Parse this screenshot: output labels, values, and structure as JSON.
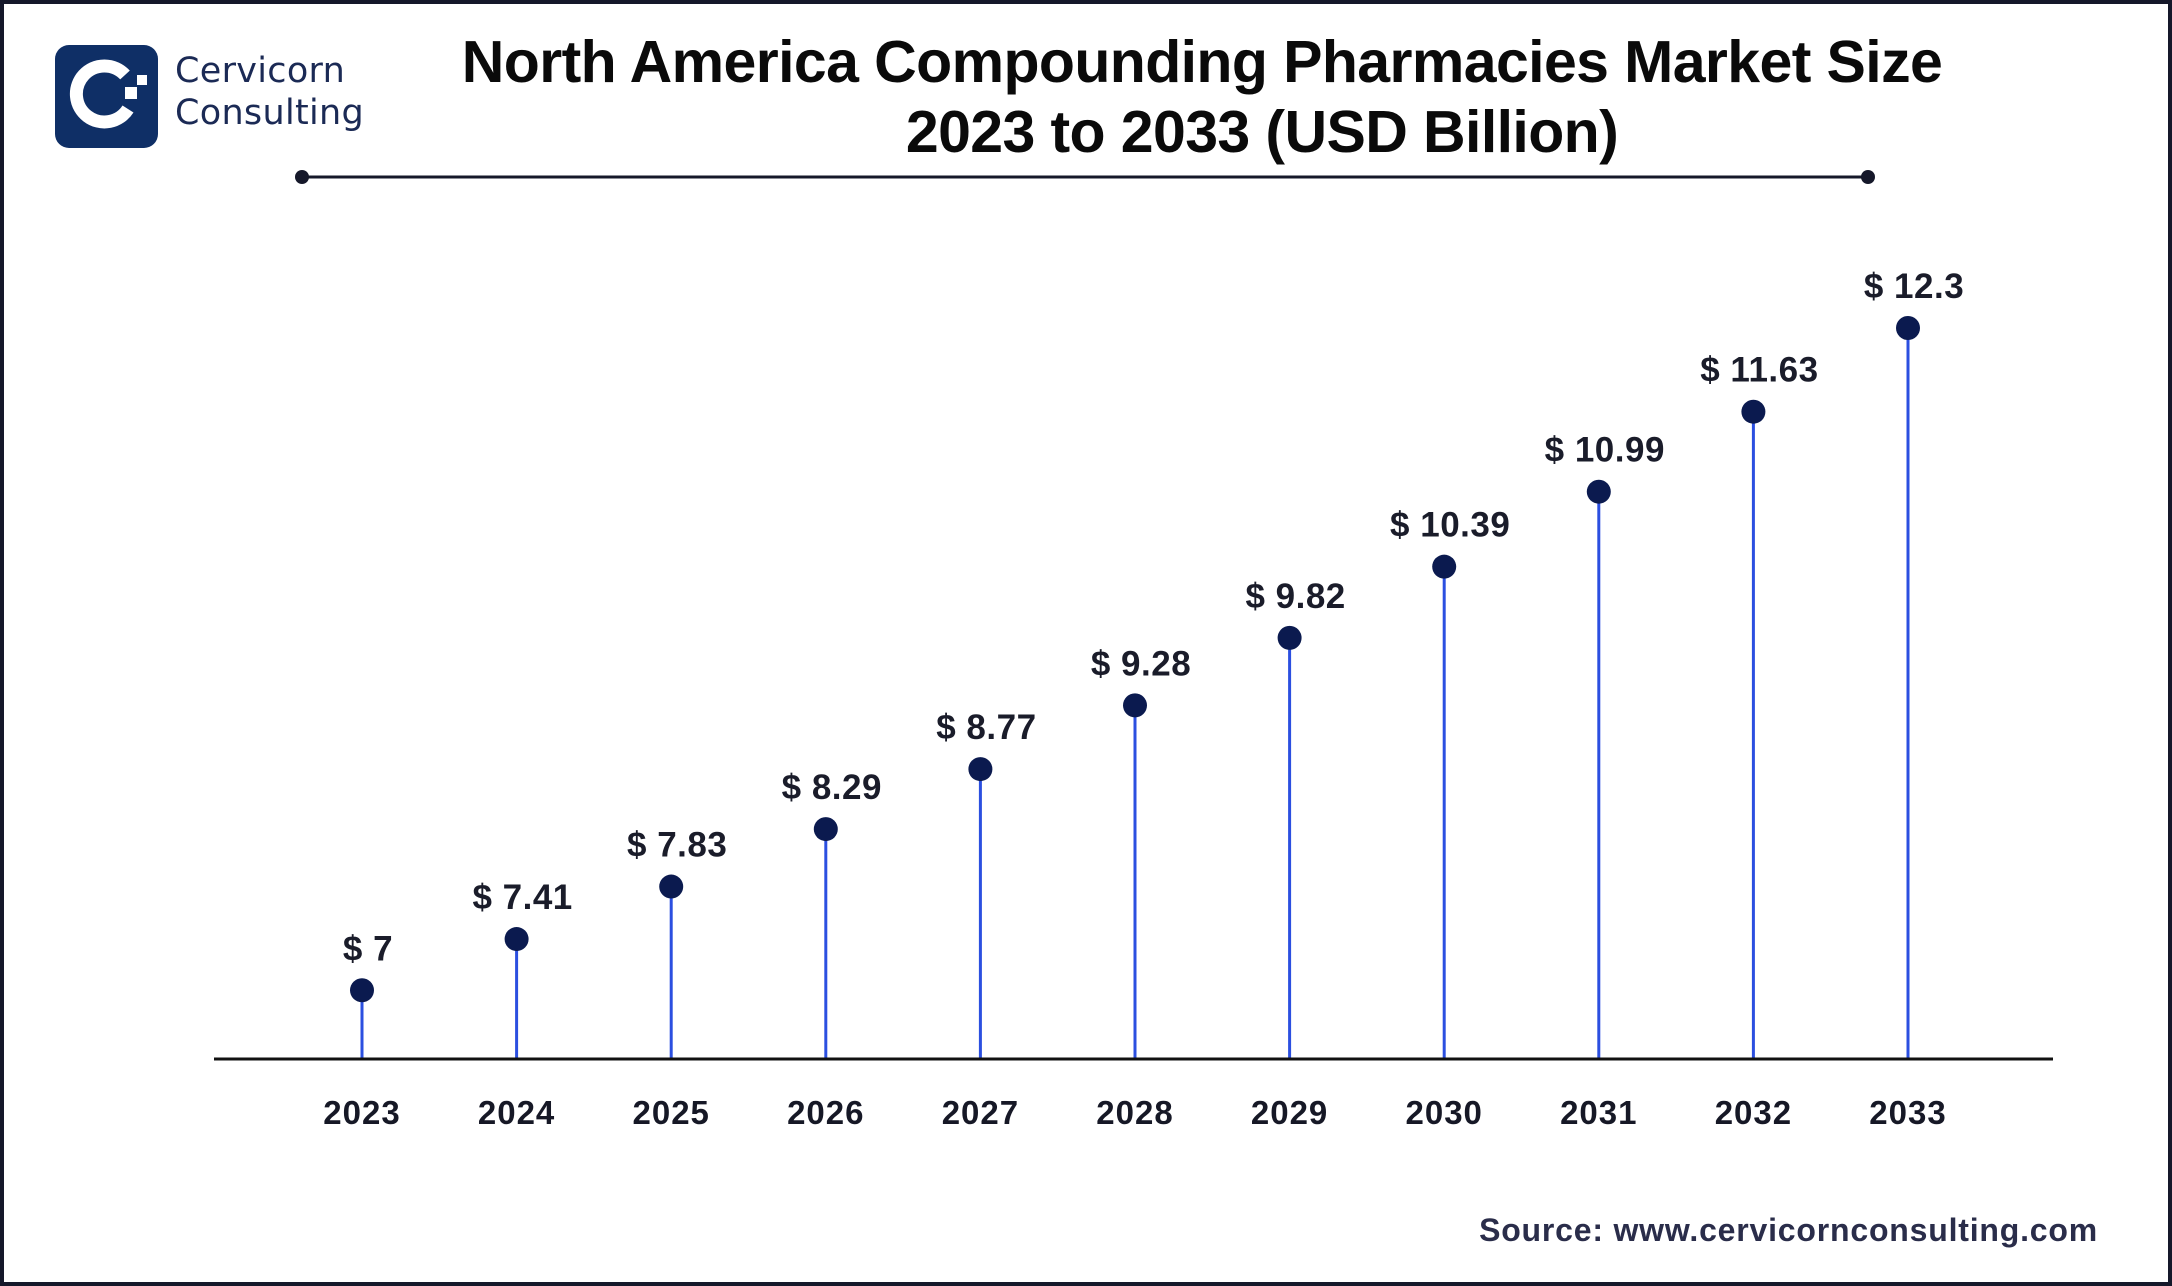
{
  "brand": {
    "name_line1": "Cervicorn",
    "name_line2": "Consulting",
    "logo_icon": "cervicorn-c-logo-icon",
    "logo_color": "#0f2f66"
  },
  "title": {
    "line1": "North America Compounding Pharmacies Market Size",
    "line2": "2023 to 2033 (USD Billion)"
  },
  "source": "Source: www.cervicornconsulting.com",
  "colors": {
    "stem": "#2b4fe0",
    "dot": "#0b1a4f",
    "axis": "#111111",
    "label": "#1a1c2a"
  },
  "chart_data": {
    "type": "lollipop",
    "title": "North America Compounding Pharmacies Market Size 2023 to 2033 (USD Billion)",
    "xlabel": "",
    "ylabel": "",
    "categories": [
      "2023",
      "2024",
      "2025",
      "2026",
      "2027",
      "2028",
      "2029",
      "2030",
      "2031",
      "2032",
      "2033"
    ],
    "values": [
      7,
      7.41,
      7.83,
      8.29,
      8.77,
      9.28,
      9.82,
      10.39,
      10.99,
      11.63,
      12.3
    ],
    "value_labels": [
      "$ 7",
      "$ 7.41",
      "$ 7.83",
      "$ 8.29",
      "$ 8.77",
      "$ 9.28",
      "$ 9.82",
      "$ 10.39",
      "$ 10.99",
      "$ 11.63",
      "$ 12.3"
    ],
    "unit": "USD Billion",
    "ylim": [
      6.45,
      12.3
    ],
    "grid": false,
    "legend": "none",
    "y_axis_visible": false
  }
}
